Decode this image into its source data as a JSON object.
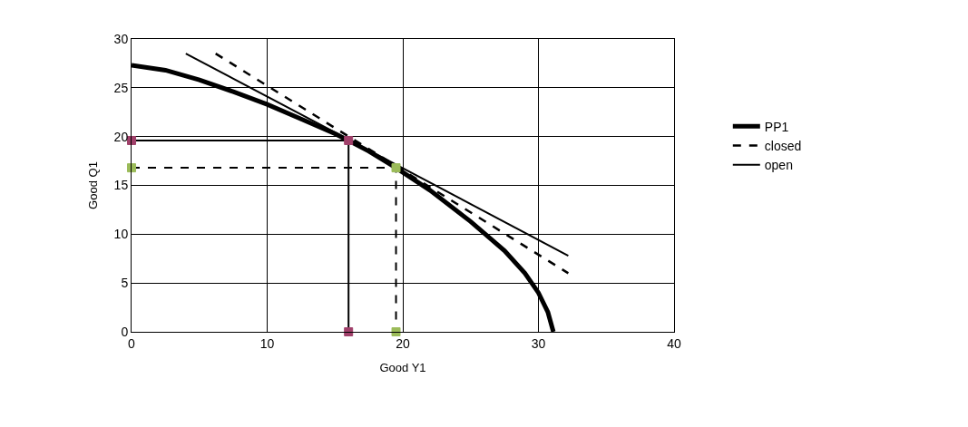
{
  "chart_data": {
    "type": "line",
    "xlabel": "Good Y1",
    "ylabel": "Good Q1",
    "xlim": [
      0,
      40
    ],
    "ylim": [
      0,
      30
    ],
    "xticks": [
      0,
      10,
      20,
      30,
      40
    ],
    "yticks": [
      0,
      5,
      10,
      15,
      20,
      25,
      30
    ],
    "grid": true,
    "legend": "right",
    "series": [
      {
        "name": "PP1",
        "color": "#000000",
        "line_style": "solid",
        "marker": "none",
        "x": [
          0,
          2.5,
          5,
          7.5,
          10,
          12.5,
          15,
          16,
          17.5,
          19.5,
          22,
          25,
          27.5,
          29,
          30,
          30.7,
          31.1
        ],
        "values": [
          27.3,
          26.8,
          25.8,
          24.6,
          23.3,
          21.8,
          20.3,
          19.6,
          18.5,
          16.8,
          14.5,
          11.3,
          8.3,
          6,
          4,
          2,
          0
        ]
      },
      {
        "name": "closed",
        "color": "#000000",
        "line_style": "dashed",
        "marker": "none",
        "x": [
          6.2,
          32.2
        ],
        "values": [
          28.5,
          6
        ]
      },
      {
        "name": "open",
        "color": "#000000",
        "line_style": "solid",
        "marker": "none",
        "x": [
          4,
          32.2
        ],
        "values": [
          28.5,
          7.8
        ]
      },
      {
        "color": "#a0406a",
        "line_style": "solid",
        "marker": "square",
        "x": [
          0,
          16,
          16
        ],
        "values": [
          19.6,
          19.6,
          0
        ]
      },
      {
        "color": "#9bbb59",
        "line_style": "dashed",
        "marker": "square",
        "x": [
          0,
          19.5,
          19.5
        ],
        "values": [
          16.8,
          16.8,
          0
        ]
      }
    ]
  }
}
